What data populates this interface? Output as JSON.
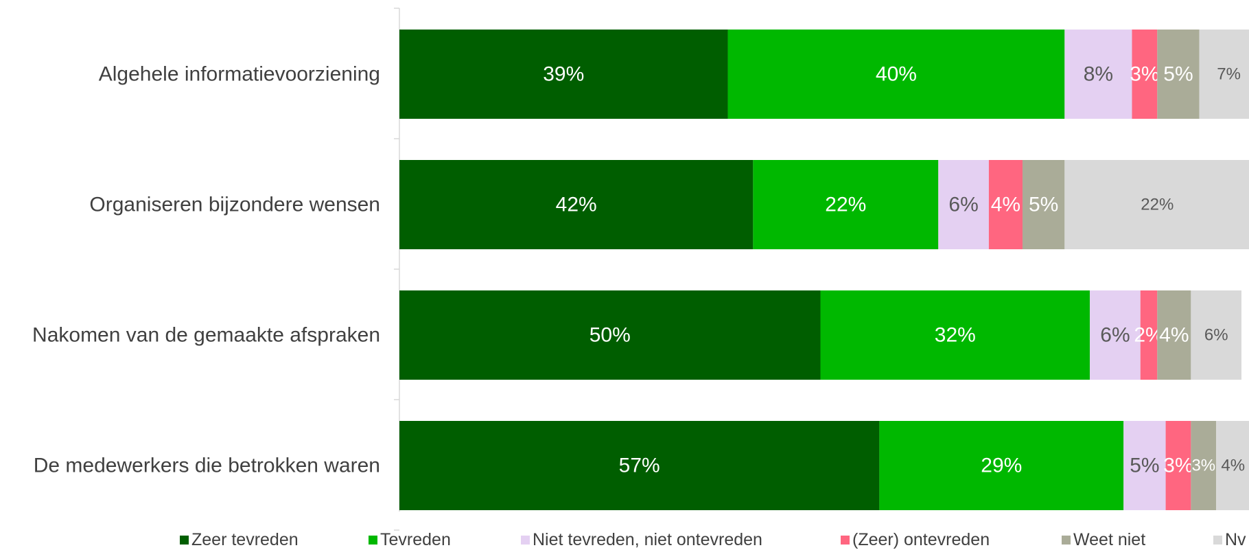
{
  "chart_data": {
    "type": "bar",
    "orientation": "horizontal",
    "stacked": true,
    "categories": [
      "Algehele informatievoorziening",
      "Organiseren bijzondere wensen",
      "Nakomen van de gemaakte afspraken",
      "De medewerkers die betrokken waren"
    ],
    "series": [
      {
        "name": "Zeer tevreden",
        "color": "#005E00",
        "label_color": "#FFFFFF",
        "values": [
          39,
          42,
          50,
          57
        ],
        "labels": [
          "39%",
          "42%",
          "50%",
          "57%"
        ]
      },
      {
        "name": "Tevreden",
        "color": "#00B800",
        "label_color": "#FFFFFF",
        "values": [
          40,
          22,
          32,
          29
        ],
        "labels": [
          "40%",
          "22%",
          "32%",
          "29%"
        ]
      },
      {
        "name": "Niet tevreden, niet ontevreden",
        "color": "#E4D0F2",
        "label_color": "#595959",
        "values": [
          8,
          6,
          6,
          5
        ],
        "labels": [
          "8%",
          "6%",
          "6%",
          "5%"
        ]
      },
      {
        "name": "(Zeer) ontevreden",
        "color": "#FF6680",
        "label_color": "#FFFFFF",
        "values": [
          3,
          4,
          2,
          3
        ],
        "labels": [
          "3%",
          "4%",
          "2%",
          "3%"
        ]
      },
      {
        "name": "Weet niet",
        "color": "#AAAC98",
        "label_color": "#FFFFFF",
        "values": [
          5,
          5,
          4,
          3
        ],
        "labels": [
          "5%",
          "5%",
          "4%",
          "3%"
        ]
      },
      {
        "name": "Nvt",
        "color": "#D9D9D9",
        "label_color": "#595959",
        "values": [
          7,
          22,
          6,
          4
        ],
        "labels": [
          "7%",
          "22%",
          "6%",
          "4%"
        ]
      }
    ],
    "xlim": [
      0,
      100
    ],
    "legend_position": "bottom",
    "legend_labels": [
      "Zeer tevreden",
      "Tevreden",
      "Niet tevreden, niet ontevreden",
      "(Zeer) ontevreden",
      "Weet niet",
      "Nv"
    ],
    "grid": false
  }
}
